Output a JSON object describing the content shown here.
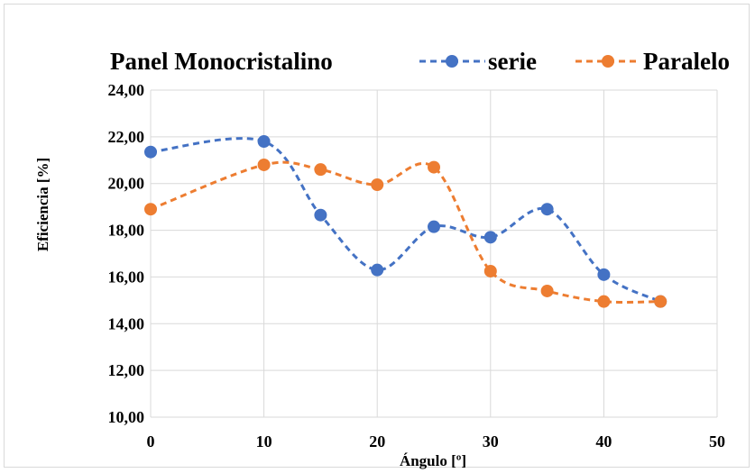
{
  "chart_data": {
    "type": "line",
    "title": "Panel Monocristalino",
    "xlabel": "Ángulo [º]",
    "ylabel": "Eficiencia [%]",
    "xlim": [
      0,
      50
    ],
    "ylim": [
      10,
      24
    ],
    "x_ticks": [
      0,
      10,
      20,
      30,
      40,
      50
    ],
    "y_ticks": [
      10,
      12,
      14,
      16,
      18,
      20,
      22,
      24
    ],
    "y_tick_labels": [
      "10,00",
      "12,00",
      "14,00",
      "16,00",
      "18,00",
      "20,00",
      "22,00",
      "24,00"
    ],
    "grid": "vertical and horizontal",
    "legend_position": "top-right",
    "series": [
      {
        "name": "serie",
        "color": "#4472C4",
        "x": [
          0,
          10,
          15,
          20,
          25,
          30,
          35,
          40,
          45
        ],
        "values": [
          21.35,
          21.8,
          18.65,
          16.3,
          18.15,
          17.7,
          18.9,
          16.1,
          14.95
        ]
      },
      {
        "name": "Paralelo",
        "color": "#ED7D31",
        "x": [
          0,
          10,
          15,
          20,
          25,
          30,
          35,
          40,
          45
        ],
        "values": [
          18.9,
          20.8,
          20.6,
          19.95,
          20.7,
          16.25,
          15.4,
          14.95,
          14.95
        ]
      }
    ]
  }
}
